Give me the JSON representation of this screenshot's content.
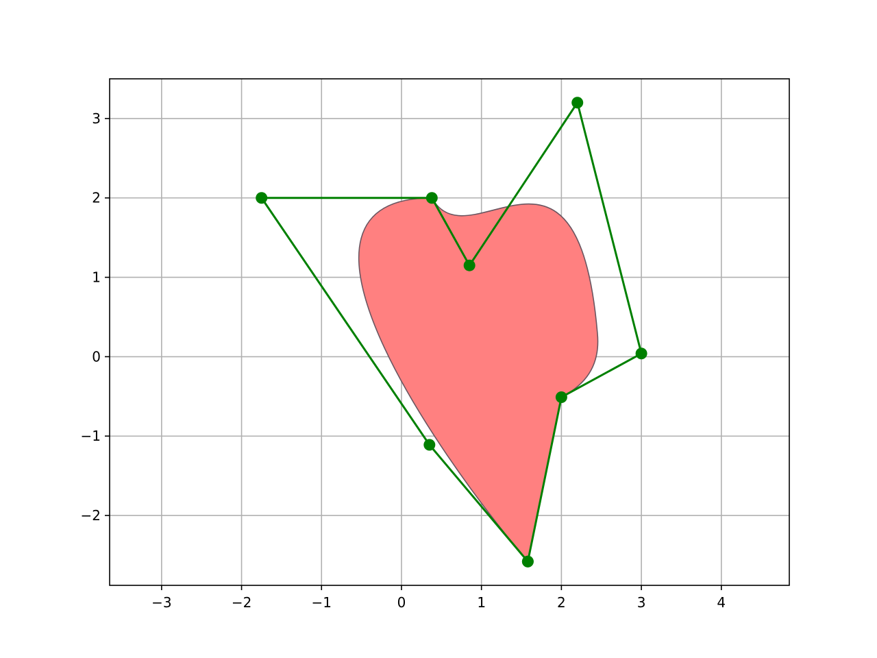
{
  "chart_data": {
    "type": "line",
    "title": "",
    "xlabel": "",
    "ylabel": "",
    "xlim": [
      -3.65,
      4.85
    ],
    "ylim": [
      -2.88,
      3.5
    ],
    "grid": true,
    "legend": "none",
    "x_ticks": [
      {
        "value": -3,
        "label": "−3"
      },
      {
        "value": -2,
        "label": "−2"
      },
      {
        "value": -1,
        "label": "−1"
      },
      {
        "value": 0,
        "label": "0"
      },
      {
        "value": 1,
        "label": "1"
      },
      {
        "value": 2,
        "label": "2"
      },
      {
        "value": 3,
        "label": "3"
      },
      {
        "value": 4,
        "label": "4"
      }
    ],
    "y_ticks": [
      {
        "value": -2,
        "label": "−2"
      },
      {
        "value": -1,
        "label": "−1"
      },
      {
        "value": 0,
        "label": "0"
      },
      {
        "value": 1,
        "label": "1"
      },
      {
        "value": 2,
        "label": "2"
      },
      {
        "value": 3,
        "label": "3"
      }
    ],
    "control_polygon": {
      "color": "#008000",
      "points": [
        [
          1.58,
          -2.58
        ],
        [
          0.35,
          -1.11
        ],
        [
          -1.75,
          2.0
        ],
        [
          0.38,
          2.0
        ],
        [
          0.85,
          1.15
        ],
        [
          2.2,
          3.2
        ],
        [
          3.0,
          0.04
        ],
        [
          2.0,
          -0.51
        ],
        [
          1.58,
          -2.58
        ]
      ]
    },
    "filled_shape": {
      "fill": "#ff8080",
      "edge": "#6a5560",
      "bezier_segments": [
        {
          "start": [
            1.58,
            -2.58
          ],
          "c1": [
            0.35,
            -1.11
          ],
          "c2": [
            -1.75,
            2.0
          ],
          "end": [
            0.38,
            2.0
          ]
        },
        {
          "start": [
            0.38,
            2.0
          ],
          "c1": [
            0.85,
            1.15
          ],
          "c2": [
            2.2,
            3.2
          ],
          "end": [
            2.45,
            0.3
          ]
        },
        {
          "start": [
            2.45,
            0.3
          ],
          "c1": [
            2.5,
            -0.2
          ],
          "c2": [
            2.2,
            -0.4
          ],
          "end": [
            2.0,
            -0.51
          ]
        },
        {
          "start": [
            2.0,
            -0.51
          ],
          "c1": [
            1.86,
            -1.2
          ],
          "c2": [
            1.72,
            -1.9
          ],
          "end": [
            1.58,
            -2.58
          ]
        }
      ]
    }
  }
}
